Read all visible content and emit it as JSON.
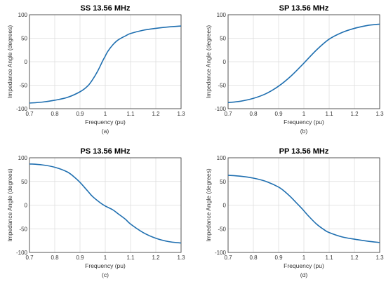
{
  "colors": {
    "line": "#1f6fb0"
  },
  "chart_data": [
    {
      "type": "line",
      "title": "SS 13.56 MHz",
      "caption": "(a)",
      "xlabel": "Frequency (pu)",
      "ylabel": "Impedance Angle (degrees)",
      "xlim": [
        0.7,
        1.3
      ],
      "ylim": [
        -100,
        100
      ],
      "xticks": [
        0.7,
        0.8,
        0.9,
        1.0,
        1.1,
        1.2,
        1.3
      ],
      "xtick_labels": [
        "0.7",
        "0.8",
        "0.9",
        "1",
        "1.1",
        "1.2",
        "1.3"
      ],
      "yticks": [
        -100,
        -50,
        0,
        50,
        100
      ],
      "ytick_labels": [
        "-100",
        "-50",
        "0",
        "50",
        "100"
      ],
      "grid": true,
      "series": [
        {
          "x": [
            0.7,
            0.75,
            0.8,
            0.85,
            0.9,
            0.93,
            0.95,
            0.97,
            0.99,
            1.0,
            1.01,
            1.03,
            1.05,
            1.08,
            1.1,
            1.15,
            1.2,
            1.25,
            1.3
          ],
          "y": [
            -88,
            -86,
            -82,
            -76,
            -64,
            -52,
            -38,
            -20,
            2,
            12,
            22,
            36,
            46,
            55,
            60,
            67,
            71,
            74,
            76
          ]
        }
      ]
    },
    {
      "type": "line",
      "title": "SP 13.56 MHz",
      "caption": "(b)",
      "xlabel": "Frequency (pu)",
      "ylabel": "Impedance Angle (degrees)",
      "xlim": [
        0.7,
        1.3
      ],
      "ylim": [
        -100,
        100
      ],
      "xticks": [
        0.7,
        0.8,
        0.9,
        1.0,
        1.1,
        1.2,
        1.3
      ],
      "xtick_labels": [
        "0.7",
        "0.8",
        "0.9",
        "1",
        "1.1",
        "1.2",
        "1.3"
      ],
      "yticks": [
        -100,
        -50,
        0,
        50,
        100
      ],
      "ytick_labels": [
        "-100",
        "-50",
        "0",
        "50",
        "100"
      ],
      "grid": true,
      "series": [
        {
          "x": [
            0.7,
            0.75,
            0.8,
            0.85,
            0.9,
            0.95,
            1.0,
            1.05,
            1.1,
            1.15,
            1.2,
            1.25,
            1.3
          ],
          "y": [
            -87,
            -84,
            -78,
            -68,
            -52,
            -30,
            -3,
            25,
            48,
            62,
            71,
            77,
            80
          ]
        }
      ]
    },
    {
      "type": "line",
      "title": "PS 13.56 MHz",
      "caption": "(c)",
      "xlabel": "Frequency (pu)",
      "ylabel": "Impedance Angle (degrees)",
      "xlim": [
        0.7,
        1.3
      ],
      "ylim": [
        -100,
        100
      ],
      "xticks": [
        0.7,
        0.8,
        0.9,
        1.0,
        1.1,
        1.2,
        1.3
      ],
      "xtick_labels": [
        "0.7",
        "0.8",
        "0.9",
        "1",
        "1.1",
        "1.2",
        "1.3"
      ],
      "yticks": [
        -100,
        -50,
        0,
        50,
        100
      ],
      "ytick_labels": [
        "-100",
        "-50",
        "0",
        "50",
        "100"
      ],
      "grid": true,
      "series": [
        {
          "x": [
            0.7,
            0.75,
            0.8,
            0.85,
            0.88,
            0.9,
            0.93,
            0.95,
            0.98,
            1.0,
            1.03,
            1.05,
            1.08,
            1.1,
            1.15,
            1.2,
            1.25,
            1.3
          ],
          "y": [
            87,
            85,
            80,
            70,
            58,
            48,
            30,
            18,
            5,
            -2,
            -10,
            -18,
            -30,
            -40,
            -58,
            -70,
            -77,
            -80
          ]
        }
      ]
    },
    {
      "type": "line",
      "title": "PP 13.56 MHz",
      "caption": "(d)",
      "xlabel": "Frequency (pu)",
      "ylabel": "Impedance Angle (degrees)",
      "xlim": [
        0.7,
        1.3
      ],
      "ylim": [
        -100,
        100
      ],
      "xticks": [
        0.7,
        0.8,
        0.9,
        1.0,
        1.1,
        1.2,
        1.3
      ],
      "xtick_labels": [
        "0.7",
        "0.8",
        "0.9",
        "1",
        "1.1",
        "1.2",
        "1.3"
      ],
      "yticks": [
        -100,
        -50,
        0,
        50,
        100
      ],
      "ytick_labels": [
        "-100",
        "-50",
        "0",
        "50",
        "100"
      ],
      "grid": true,
      "series": [
        {
          "x": [
            0.7,
            0.75,
            0.8,
            0.85,
            0.9,
            0.93,
            0.95,
            0.97,
            0.99,
            1.0,
            1.02,
            1.05,
            1.08,
            1.1,
            1.15,
            1.2,
            1.25,
            1.3
          ],
          "y": [
            63,
            61,
            57,
            50,
            38,
            26,
            16,
            5,
            -6,
            -12,
            -24,
            -40,
            -52,
            -58,
            -67,
            -72,
            -76,
            -79
          ]
        }
      ]
    }
  ]
}
